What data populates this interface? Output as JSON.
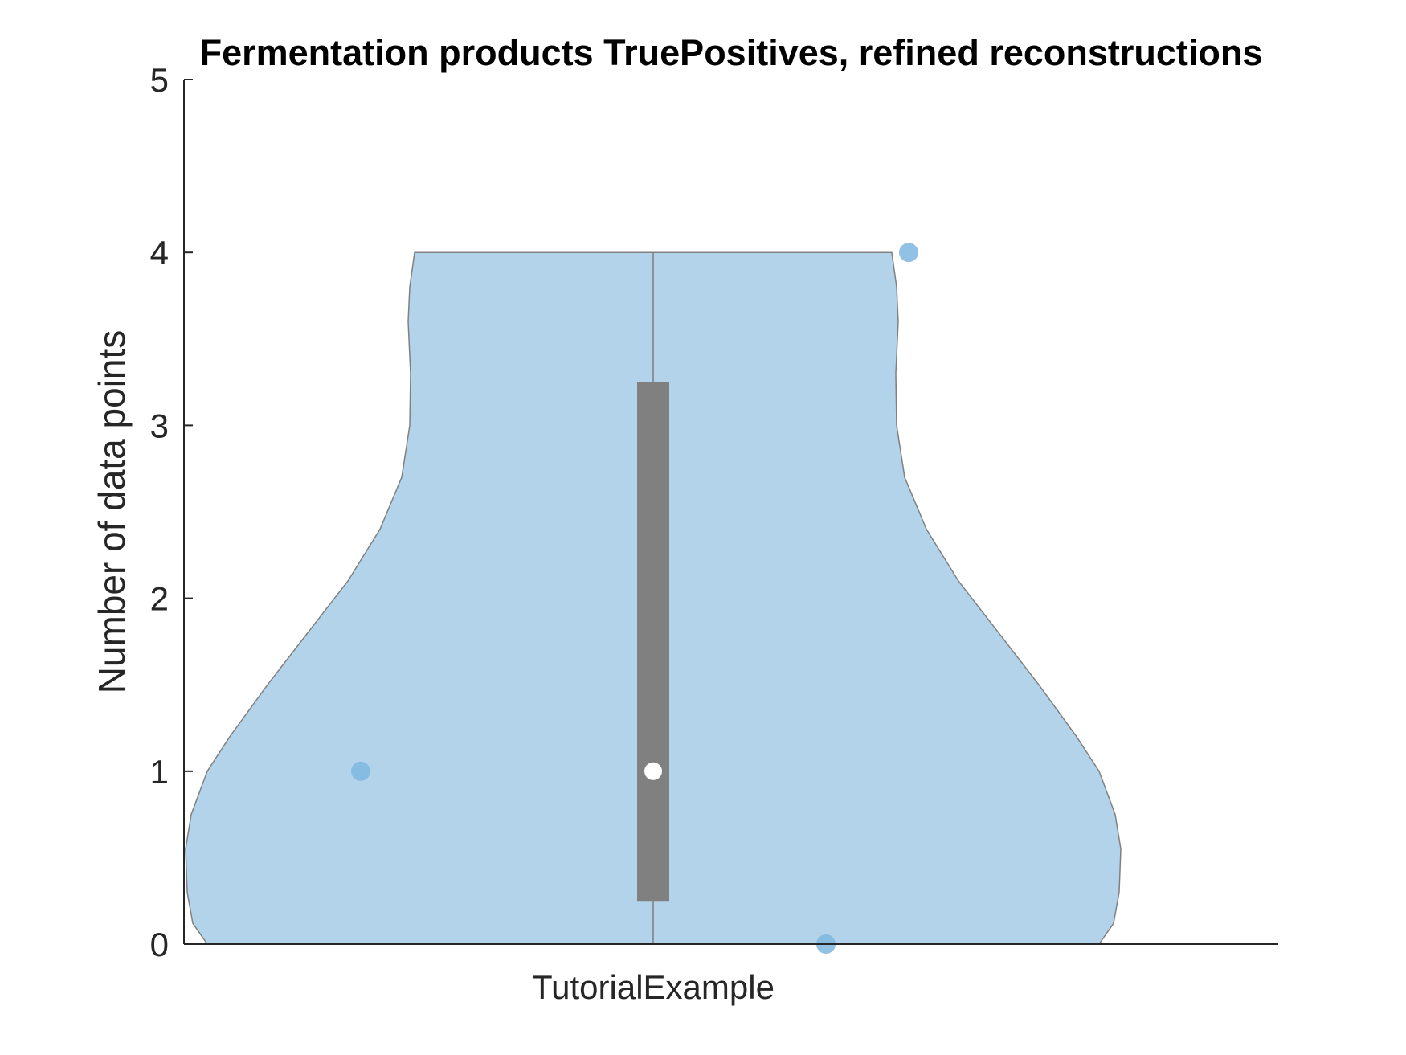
{
  "chart_data": {
    "type": "violin",
    "title": "Fermentation products TruePositives, refined reconstructions",
    "xlabel": "",
    "ylabel": "Number of data points",
    "ylim": [
      0,
      5
    ],
    "yticks": [
      "0",
      "1",
      "2",
      "3",
      "4",
      "5"
    ],
    "categories": [
      "TutorialExample"
    ],
    "grid": false,
    "series": [
      {
        "category": "TutorialExample",
        "points": [
          1,
          0,
          4
        ],
        "median": 1,
        "q1": 0.25,
        "q3": 3.25,
        "whisker_low": 0,
        "whisker_high": 4
      }
    ],
    "colors": {
      "violin_fill": "#b2d3ea",
      "violin_edge": "#808080",
      "points": "#7eb6e0",
      "box": "#808080",
      "median": "#ffffff",
      "axes": "#262626"
    }
  }
}
